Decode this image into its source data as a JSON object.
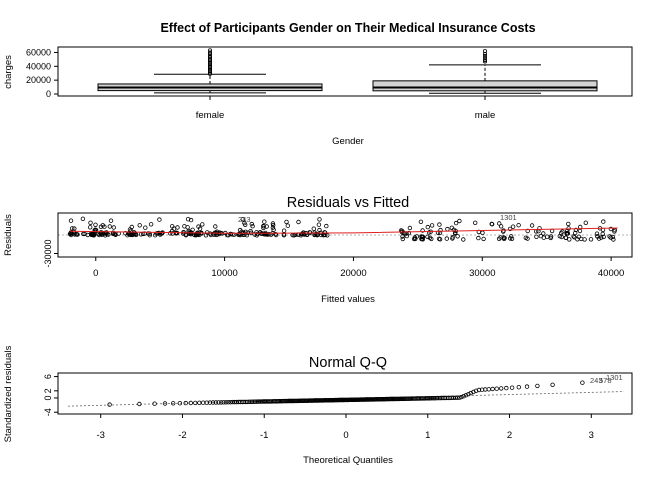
{
  "chart_data": [
    {
      "type": "box",
      "title": "Effect of Participants Gender on Their Medical Insurance Costs",
      "xlabel": "Gender",
      "ylabel": "charges",
      "categories": [
        "female",
        "male"
      ],
      "ylim": [
        0,
        65000
      ],
      "yticks": [
        "0",
        "20000",
        "40000",
        "60000"
      ],
      "boxes": [
        {
          "category": "female",
          "lower_whisker": 1600,
          "q1": 4900,
          "median": 9400,
          "q3": 14500,
          "upper_whisker": 28500,
          "outliers": [
            29000,
            31000,
            33000,
            35000,
            37000,
            39000,
            41000,
            43000,
            45000,
            47000,
            49000,
            51000,
            53000,
            55000,
            58000,
            60000,
            63000
          ]
        },
        {
          "category": "male",
          "lower_whisker": 1100,
          "q1": 4600,
          "median": 9400,
          "q3": 19000,
          "upper_whisker": 42000,
          "outliers": [
            47000,
            49000,
            52000,
            55000,
            58000,
            62000
          ]
        }
      ]
    },
    {
      "type": "scatter",
      "title": "Residuals vs Fitted",
      "xlabel": "Fitted values",
      "ylabel": "Residuals",
      "xlim": [
        -2000,
        41000
      ],
      "ylim": [
        -35000,
        28000
      ],
      "xticks": [
        "0",
        "10000",
        "20000",
        "30000",
        "40000"
      ],
      "yticks": [
        "-30000"
      ],
      "annotations": [
        "1301",
        "243"
      ],
      "clusters": [
        {
          "x_range": [
            -2000,
            18000
          ],
          "y_range": [
            -5000,
            20000
          ],
          "n": 260
        },
        {
          "x_range": [
            23500,
            40500
          ],
          "y_range": [
            -12000,
            18000
          ],
          "n": 130
        }
      ],
      "smooth_line": [
        [
          -2000,
          2000
        ],
        [
          10000,
          -1000
        ],
        [
          20000,
          -500
        ],
        [
          30000,
          3000
        ],
        [
          40500,
          6500
        ]
      ]
    },
    {
      "type": "scatter",
      "title": "Normal Q-Q",
      "xlabel": "Theoretical Quantiles",
      "ylabel": "Standardized residuals",
      "xlim": [
        -3.4,
        3.4
      ],
      "ylim": [
        -4.5,
        7
      ],
      "xticks": [
        "-3",
        "-2",
        "-1",
        "0",
        "1",
        "2",
        "3"
      ],
      "yticks": [
        "-4",
        "0",
        "2",
        "6"
      ],
      "annotations": [
        "1301",
        "243",
        "578"
      ],
      "reference_line": [
        [
          -3.4,
          -2.3
        ],
        [
          3.4,
          1.8
        ]
      ],
      "n": 260
    }
  ]
}
